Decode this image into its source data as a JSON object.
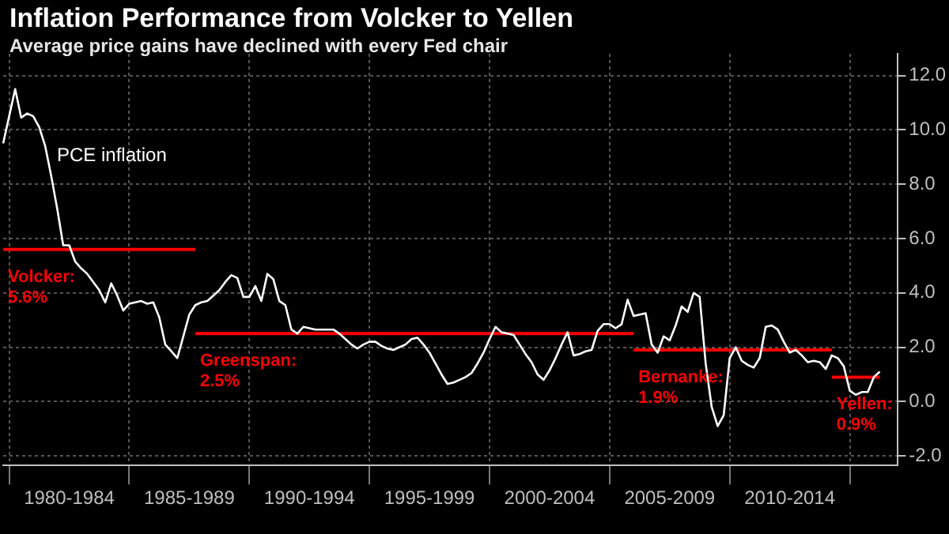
{
  "chart_data": {
    "type": "line",
    "title": "Inflation Performance from Volcker to Yellen",
    "subtitle": "Average price gains have declined with every Fed chair",
    "categories": [
      null,
      null,
      null,
      null,
      null,
      null,
      null,
      null,
      null,
      null,
      null,
      "1980-1984",
      null,
      null,
      null,
      null,
      null,
      null,
      null,
      null,
      null,
      null,
      null,
      null,
      null,
      null,
      null,
      null,
      null,
      null,
      null,
      "1985-1989",
      null,
      null,
      null,
      null,
      null,
      null,
      null,
      null,
      null,
      null,
      null,
      null,
      null,
      null,
      null,
      null,
      null,
      null,
      null,
      "1990-1994",
      null,
      null,
      null,
      null,
      null,
      null,
      null,
      null,
      null,
      null,
      null,
      null,
      null,
      null,
      null,
      null,
      null,
      null,
      null,
      "1995-1999",
      null,
      null,
      null,
      null,
      null,
      null,
      null,
      null,
      null,
      null,
      null,
      null,
      null,
      null,
      null,
      null,
      null,
      null,
      null,
      "2000-2004",
      null,
      null,
      null,
      null,
      null,
      null,
      null,
      null,
      null,
      null,
      null,
      null,
      null,
      null,
      null,
      null,
      null,
      null,
      null,
      "2005-2009",
      null,
      null,
      null,
      null,
      null,
      null,
      null,
      null,
      null,
      null,
      null,
      null,
      null,
      null,
      null,
      null,
      null,
      null,
      null,
      "2010-2014",
      null,
      null,
      null,
      null,
      null,
      null,
      null,
      null,
      null,
      null,
      null,
      null,
      null,
      null,
      null,
      null,
      null,
      null
    ],
    "series": [
      {
        "name": "PCE inflation",
        "color": "#ffffff",
        "values": [
          9.5,
          10.5,
          11.5,
          10.45,
          10.6,
          10.5,
          10.1,
          9.4,
          8.3,
          7.1,
          5.75,
          5.75,
          5.15,
          4.9,
          4.7,
          4.4,
          4.1,
          3.65,
          4.35,
          3.9,
          3.35,
          3.6,
          3.65,
          3.7,
          3.6,
          3.65,
          3.1,
          2.1,
          1.85,
          1.6,
          2.4,
          3.2,
          3.55,
          3.65,
          3.7,
          3.9,
          4.1,
          4.4,
          4.65,
          4.55,
          3.85,
          3.85,
          4.25,
          3.7,
          4.7,
          4.5,
          3.7,
          3.55,
          2.65,
          2.5,
          2.75,
          2.7,
          2.65,
          2.65,
          2.65,
          2.65,
          2.5,
          2.3,
          2.1,
          1.95,
          2.1,
          2.2,
          2.2,
          2.05,
          1.95,
          1.9,
          2.0,
          2.1,
          2.3,
          2.35,
          2.1,
          1.8,
          1.4,
          1.0,
          0.65,
          0.7,
          0.8,
          0.9,
          1.05,
          1.4,
          1.8,
          2.3,
          2.75,
          2.55,
          2.5,
          2.45,
          2.1,
          1.75,
          1.45,
          1.0,
          0.8,
          1.15,
          1.6,
          2.1,
          2.55,
          1.7,
          1.75,
          1.85,
          1.9,
          2.6,
          2.85,
          2.85,
          2.7,
          2.85,
          3.75,
          3.15,
          3.2,
          3.25,
          2.1,
          1.8,
          2.4,
          2.25,
          2.8,
          3.5,
          3.3,
          4.0,
          3.85,
          1.4,
          -0.2,
          -0.9,
          -0.5,
          1.6,
          2.0,
          1.5,
          1.35,
          1.25,
          1.6,
          2.75,
          2.8,
          2.65,
          2.2,
          1.8,
          1.9,
          1.7,
          1.45,
          1.5,
          1.45,
          1.2,
          1.7,
          1.6,
          1.3,
          0.4,
          0.25,
          0.35,
          0.35,
          0.9,
          1.1,
          null,
          null,
          null
        ]
      },
      {
        "name": "Volcker: 5.6%",
        "color": "#ff0000",
        "values": [
          5.6,
          5.6,
          5.6,
          5.6,
          5.6,
          5.6,
          5.6,
          5.6,
          5.6,
          5.6,
          5.6,
          5.6,
          5.6,
          5.6,
          5.6,
          5.6,
          5.6,
          5.6,
          5.6,
          5.6,
          5.6,
          5.6,
          5.6,
          5.6,
          5.6,
          5.6,
          5.6,
          5.6,
          5.6,
          5.6,
          5.6,
          5.6,
          5.6,
          null,
          null,
          null,
          null,
          null,
          null,
          null,
          null,
          null,
          null,
          null,
          null,
          null,
          null,
          null,
          null,
          null,
          null,
          null,
          null,
          null,
          null,
          null,
          null,
          null,
          null,
          null,
          null,
          null,
          null,
          null,
          null,
          null,
          null,
          null,
          null,
          null,
          null,
          null,
          null,
          null,
          null,
          null,
          null,
          null,
          null,
          null,
          null,
          null,
          null,
          null,
          null,
          null,
          null,
          null,
          null,
          null,
          null,
          null,
          null,
          null,
          null,
          null,
          null,
          null,
          null,
          null,
          null,
          null,
          null,
          null,
          null,
          null,
          null,
          null,
          null,
          null,
          null,
          null,
          null,
          null,
          null,
          null,
          null,
          null,
          null,
          null,
          null,
          null,
          null,
          null,
          null,
          null,
          null,
          null,
          null,
          null,
          null,
          null,
          null,
          null,
          null,
          null,
          null,
          null,
          null,
          null,
          null,
          null,
          null,
          null,
          null,
          null,
          null,
          null,
          null,
          null
        ]
      },
      {
        "name": "Greenspan: 2.5%",
        "color": "#ff0000",
        "values": [
          null,
          null,
          null,
          null,
          null,
          null,
          null,
          null,
          null,
          null,
          null,
          null,
          null,
          null,
          null,
          null,
          null,
          null,
          null,
          null,
          null,
          null,
          null,
          null,
          null,
          null,
          null,
          null,
          null,
          null,
          null,
          null,
          2.5,
          2.5,
          2.5,
          2.5,
          2.5,
          2.5,
          2.5,
          2.5,
          2.5,
          2.5,
          2.5,
          2.5,
          2.5,
          2.5,
          2.5,
          2.5,
          2.5,
          2.5,
          2.5,
          2.5,
          2.5,
          2.5,
          2.5,
          2.5,
          2.5,
          2.5,
          2.5,
          2.5,
          2.5,
          2.5,
          2.5,
          2.5,
          2.5,
          2.5,
          2.5,
          2.5,
          2.5,
          2.5,
          2.5,
          2.5,
          2.5,
          2.5,
          2.5,
          2.5,
          2.5,
          2.5,
          2.5,
          2.5,
          2.5,
          2.5,
          2.5,
          2.5,
          2.5,
          2.5,
          2.5,
          2.5,
          2.5,
          2.5,
          2.5,
          2.5,
          2.5,
          2.5,
          2.5,
          2.5,
          2.5,
          2.5,
          2.5,
          2.5,
          2.5,
          2.5,
          2.5,
          2.5,
          2.5,
          2.5,
          null,
          null,
          null,
          null,
          null,
          null,
          null,
          null,
          null,
          null,
          null,
          null,
          null,
          null,
          null,
          null,
          null,
          null,
          null,
          null,
          null,
          null,
          null,
          null,
          null,
          null,
          null,
          null,
          null,
          null,
          null,
          null,
          null,
          null,
          null,
          null,
          null,
          null,
          null,
          null,
          null,
          null,
          null,
          null
        ]
      },
      {
        "name": "Bernanke: 1.9%",
        "color": "#ff0000",
        "values": [
          null,
          null,
          null,
          null,
          null,
          null,
          null,
          null,
          null,
          null,
          null,
          null,
          null,
          null,
          null,
          null,
          null,
          null,
          null,
          null,
          null,
          null,
          null,
          null,
          null,
          null,
          null,
          null,
          null,
          null,
          null,
          null,
          null,
          null,
          null,
          null,
          null,
          null,
          null,
          null,
          null,
          null,
          null,
          null,
          null,
          null,
          null,
          null,
          null,
          null,
          null,
          null,
          null,
          null,
          null,
          null,
          null,
          null,
          null,
          null,
          null,
          null,
          null,
          null,
          null,
          null,
          null,
          null,
          null,
          null,
          null,
          null,
          null,
          null,
          null,
          null,
          null,
          null,
          null,
          null,
          null,
          null,
          null,
          null,
          null,
          null,
          null,
          null,
          null,
          null,
          null,
          null,
          null,
          null,
          null,
          null,
          null,
          null,
          null,
          null,
          null,
          null,
          null,
          null,
          null,
          1.9,
          1.9,
          1.9,
          1.9,
          1.9,
          1.9,
          1.9,
          1.9,
          1.9,
          1.9,
          1.9,
          1.9,
          1.9,
          1.9,
          1.9,
          1.9,
          1.9,
          1.9,
          1.9,
          1.9,
          1.9,
          1.9,
          1.9,
          1.9,
          1.9,
          1.9,
          1.9,
          1.9,
          1.9,
          1.9,
          1.9,
          1.9,
          1.9,
          1.9,
          null,
          null,
          null,
          null,
          null,
          null,
          null,
          null,
          null,
          null,
          null
        ]
      },
      {
        "name": "Yellen: 0.9%",
        "color": "#ff0000",
        "values": [
          null,
          null,
          null,
          null,
          null,
          null,
          null,
          null,
          null,
          null,
          null,
          null,
          null,
          null,
          null,
          null,
          null,
          null,
          null,
          null,
          null,
          null,
          null,
          null,
          null,
          null,
          null,
          null,
          null,
          null,
          null,
          null,
          null,
          null,
          null,
          null,
          null,
          null,
          null,
          null,
          null,
          null,
          null,
          null,
          null,
          null,
          null,
          null,
          null,
          null,
          null,
          null,
          null,
          null,
          null,
          null,
          null,
          null,
          null,
          null,
          null,
          null,
          null,
          null,
          null,
          null,
          null,
          null,
          null,
          null,
          null,
          null,
          null,
          null,
          null,
          null,
          null,
          null,
          null,
          null,
          null,
          null,
          null,
          null,
          null,
          null,
          null,
          null,
          null,
          null,
          null,
          null,
          null,
          null,
          null,
          null,
          null,
          null,
          null,
          null,
          null,
          null,
          null,
          null,
          null,
          null,
          null,
          null,
          null,
          null,
          null,
          null,
          null,
          null,
          null,
          null,
          null,
          null,
          null,
          null,
          null,
          null,
          null,
          null,
          null,
          null,
          null,
          null,
          null,
          null,
          null,
          null,
          null,
          null,
          null,
          null,
          null,
          null,
          0.9,
          0.9,
          0.9,
          0.9,
          0.9,
          0.9,
          0.9,
          0.9,
          0.9,
          null,
          null,
          null
        ]
      }
    ],
    "ylim": [
      -2.35,
      12.8
    ],
    "yticks": [
      {
        "value": -2,
        "label": "-2.0"
      },
      {
        "value": 0,
        "label": "0.0"
      },
      {
        "value": 2,
        "label": "2.0"
      },
      {
        "value": 4,
        "label": "4.0"
      },
      {
        "value": 6,
        "label": "6.0"
      },
      {
        "value": 8,
        "label": "8.0"
      },
      {
        "value": 10,
        "label": "10.0"
      },
      {
        "value": 12,
        "label": "12.0"
      }
    ],
    "grid": true,
    "legend": false,
    "marker": "none",
    "line_style": "solid"
  }
}
